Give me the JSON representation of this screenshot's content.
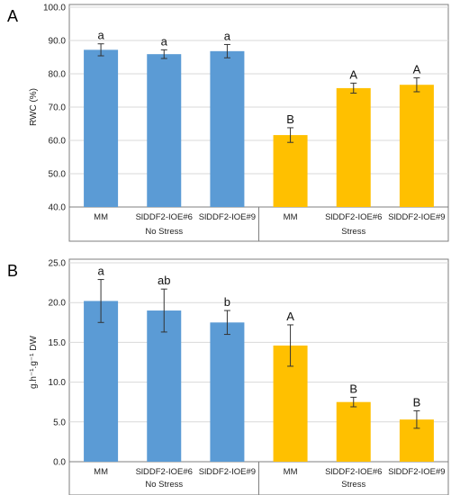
{
  "chart_data": [
    {
      "type": "bar",
      "panel_label": "A",
      "ylabel": "RWC (%)",
      "ylim": [
        40,
        100
      ],
      "yticks": [
        "40.0",
        "50.0",
        "60.0",
        "70.0",
        "80.0",
        "90.0",
        "100.0"
      ],
      "grid": true,
      "categories": [
        "MM",
        "SlDDF2-IOE#6",
        "SlDDF2-IOE#9",
        "MM",
        "SlDDF2-IOE#6",
        "SlDDF2-IOE#9"
      ],
      "groups": [
        "No Stress",
        "Stress"
      ],
      "series": [
        {
          "values": [
            87.2,
            85.9,
            86.8,
            61.6,
            75.7,
            76.7
          ],
          "errors": [
            1.8,
            1.3,
            2.0,
            2.2,
            1.5,
            2.1
          ],
          "colors": [
            "#5b9bd5",
            "#5b9bd5",
            "#5b9bd5",
            "#ffc000",
            "#ffc000",
            "#ffc000"
          ],
          "letters": [
            "a",
            "a",
            "a",
            "B",
            "A",
            "A"
          ]
        }
      ]
    },
    {
      "type": "bar",
      "panel_label": "B",
      "ylabel": "g.h⁻¹.g⁻¹ DW",
      "ylim": [
        0,
        25
      ],
      "yticks": [
        "0.0",
        "5.0",
        "10.0",
        "15.0",
        "20.0",
        "25.0"
      ],
      "grid": true,
      "categories": [
        "MM",
        "SlDDF2-IOE#6",
        "SlDDF2-IOE#9",
        "MM",
        "SlDDF2-IOE#6",
        "SlDDF2-IOE#9"
      ],
      "groups": [
        "No Stress",
        "Stress"
      ],
      "series": [
        {
          "values": [
            20.2,
            19.0,
            17.5,
            14.6,
            7.5,
            5.3
          ],
          "errors": [
            2.7,
            2.7,
            1.5,
            2.6,
            0.6,
            1.1
          ],
          "colors": [
            "#5b9bd5",
            "#5b9bd5",
            "#5b9bd5",
            "#ffc000",
            "#ffc000",
            "#ffc000"
          ],
          "letters": [
            "a",
            "ab",
            "b",
            "A",
            "B",
            "B"
          ]
        }
      ]
    }
  ]
}
